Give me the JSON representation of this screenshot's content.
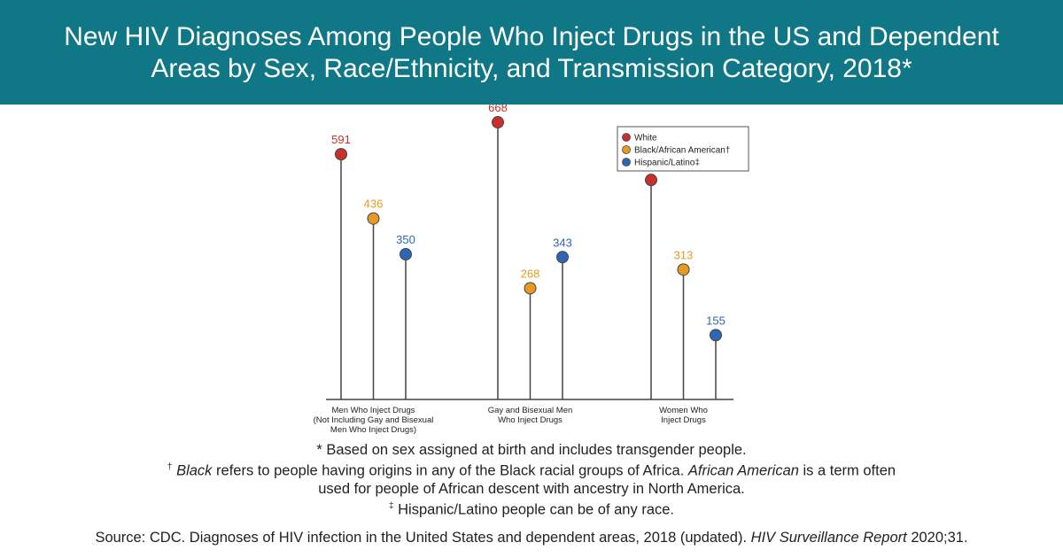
{
  "header": {
    "title_line1": "New HIV Diagnoses Among People Who Inject Drugs in the US and Dependent",
    "title_line2": "Areas by Sex, Race/Ethnicity, and Transmission Category, 2018*"
  },
  "chart_data": {
    "type": "lollipop",
    "categories": [
      [
        "Men Who Inject Drugs",
        "(Not Including Gay and Bisexual",
        "Men Who Inject Drugs)"
      ],
      [
        "Gay and Bisexual Men",
        "Who Inject Drugs"
      ],
      [
        "Women Who",
        "Inject Drugs"
      ]
    ],
    "series": [
      {
        "name": "White",
        "legend_label": "White",
        "color": "#c8302c",
        "values": [
          591,
          668,
          529
        ]
      },
      {
        "name": "Black/African American",
        "legend_label": "Black/African American†",
        "color": "#e79a23",
        "values": [
          436,
          268,
          313
        ]
      },
      {
        "name": "Hispanic/Latino",
        "legend_label": "Hispanic/Latino‡",
        "color": "#2e66b6",
        "values": [
          350,
          343,
          155
        ]
      }
    ],
    "ylim": [
      0,
      700
    ],
    "legend_position": "top-right",
    "grid": false
  },
  "footnotes": {
    "sex_note": "* Based on sex assigned at birth and includes transgender people.",
    "black_mark": "†",
    "black_term": "Black",
    "black_text_a": " refers to people having origins in any of the Black racial groups of Africa. ",
    "african_american_term": "African American",
    "black_text_b": " is a term often",
    "black_text_c": "used for people of African descent with ancestry in North America.",
    "hispanic_mark": "‡",
    "hispanic_text": " Hispanic/Latino people can be of any race."
  },
  "source": {
    "prefix": "Source: CDC. Diagnoses of HIV infection in the United States and dependent areas, 2018 (updated). ",
    "journal": "HIV Surveillance Report",
    "suffix": " 2020;31."
  }
}
